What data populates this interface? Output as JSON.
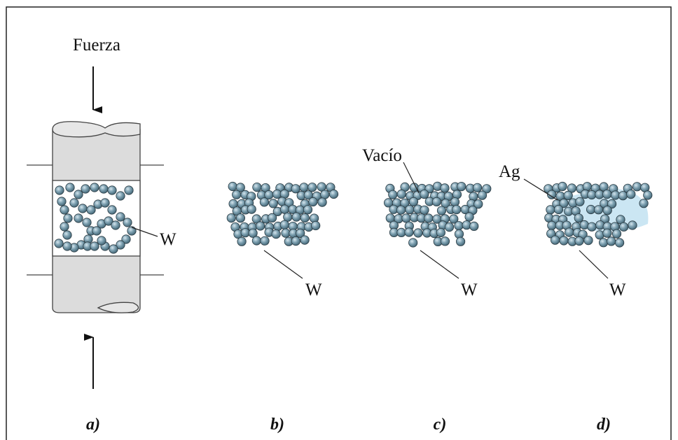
{
  "force_label": "Fuerza",
  "void_label": "Vacío",
  "silver_label": "Ag",
  "panels": [
    {
      "label": "a)",
      "particle_label": "W"
    },
    {
      "label": "b)",
      "particle_label": "W"
    },
    {
      "label": "c)",
      "particle_label": "W"
    },
    {
      "label": "d)",
      "particle_label": "W"
    }
  ]
}
